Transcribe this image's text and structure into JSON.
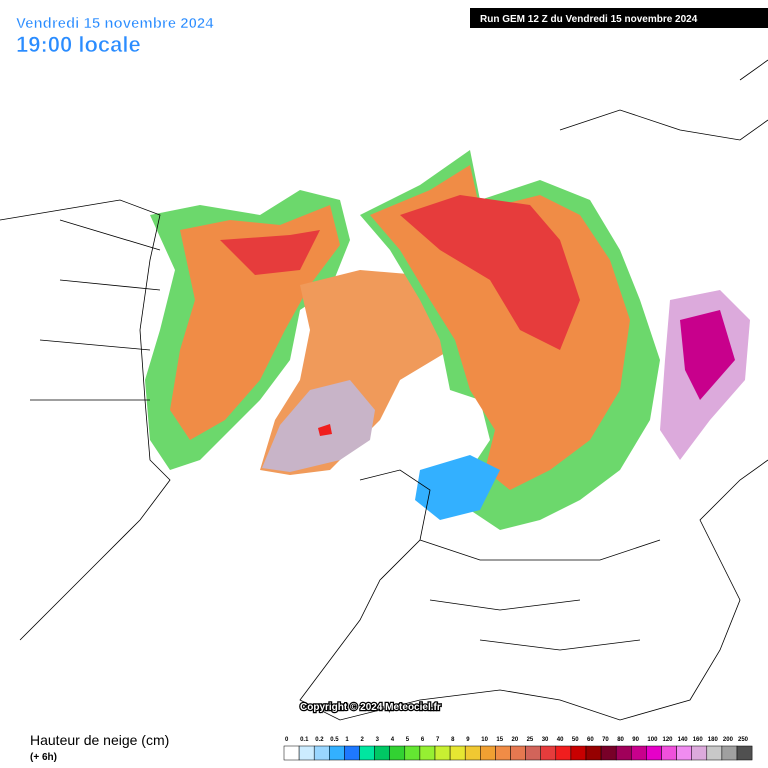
{
  "header": {
    "date": "Vendredi 15 novembre 2024",
    "time": "19:00 locale",
    "run": "Run GEM 12 Z du Vendredi 15 novembre 2024"
  },
  "footer": {
    "copyright": "Copyright © 2024 Meteociel.fr"
  },
  "legend": {
    "title": "Hauteur de neige (cm)",
    "subtitle": "(+ 6h)",
    "levels": [
      0,
      0.1,
      0.2,
      0.5,
      1,
      2,
      3,
      4,
      5,
      6,
      7,
      8,
      9,
      10,
      15,
      20,
      25,
      30,
      40,
      50,
      60,
      70,
      80,
      90,
      100,
      120,
      140,
      160,
      180,
      200,
      250
    ],
    "colors": [
      "#ffffff",
      "#ccecff",
      "#99d6ff",
      "#33b0ff",
      "#1e78ff",
      "#00e6a0",
      "#00c864",
      "#32d232",
      "#64e632",
      "#96f032",
      "#c8f032",
      "#e6e632",
      "#f0c832",
      "#f0a032",
      "#f08c46",
      "#e67850",
      "#d2645a",
      "#e63c3c",
      "#f01e1e",
      "#c80000",
      "#960000",
      "#780028",
      "#a0005a",
      "#c8008c",
      "#e600c8",
      "#f050dc",
      "#f08cf0",
      "#dcaadc",
      "#c8c8c8",
      "#a0a0a0",
      "#505050"
    ]
  }
}
